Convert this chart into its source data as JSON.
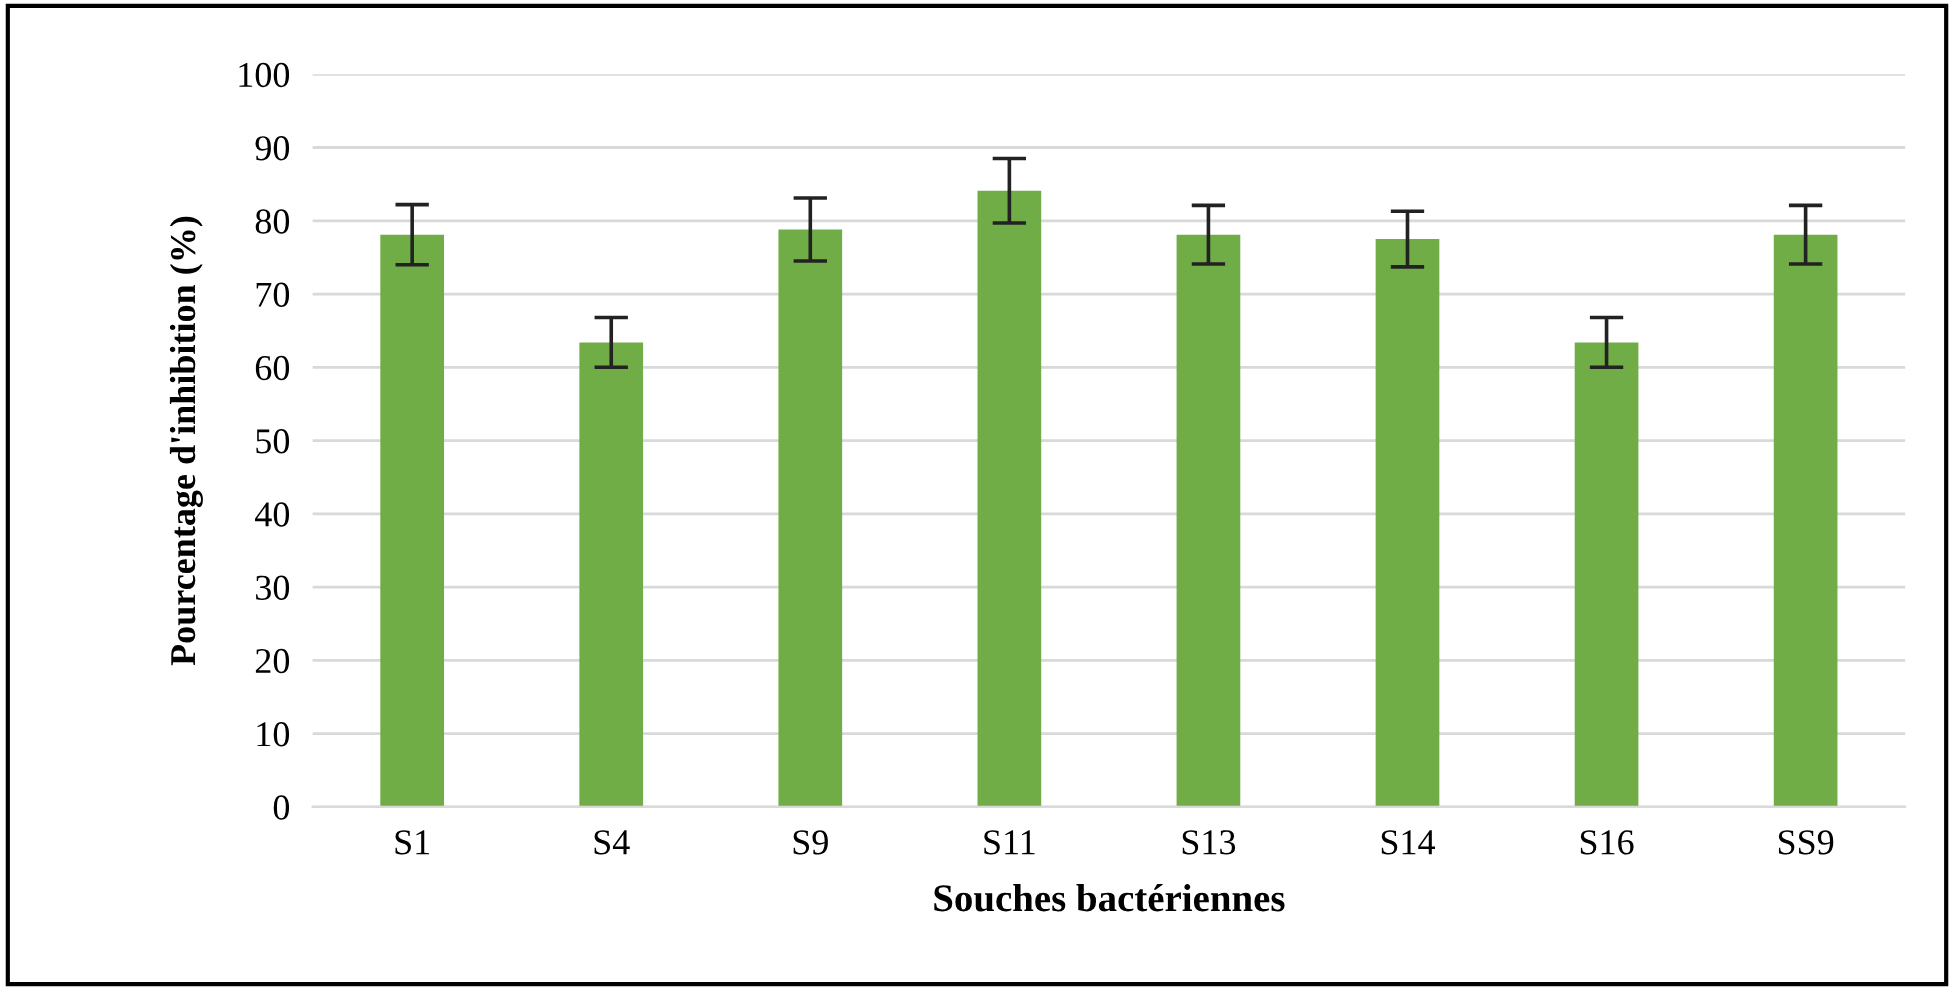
{
  "chart_data": {
    "type": "bar",
    "xlabel": "Souches bactériennes",
    "ylabel": "Pourcentage d'inhibition (%)",
    "categories": [
      "S1",
      "S4",
      "S9",
      "S11",
      "S13",
      "S14",
      "S16",
      "SS9"
    ],
    "values": [
      78.1,
      63.4,
      78.8,
      84.1,
      78.1,
      77.5,
      63.4,
      78.1
    ],
    "errors": [
      4.1,
      3.4,
      4.3,
      4.4,
      4.0,
      3.8,
      3.4,
      4.0
    ],
    "color": "#70ad47",
    "ylim": [
      0,
      100
    ],
    "yticks": [
      0,
      10,
      20,
      30,
      40,
      50,
      60,
      70,
      80,
      90,
      100
    ],
    "grid": "y"
  }
}
